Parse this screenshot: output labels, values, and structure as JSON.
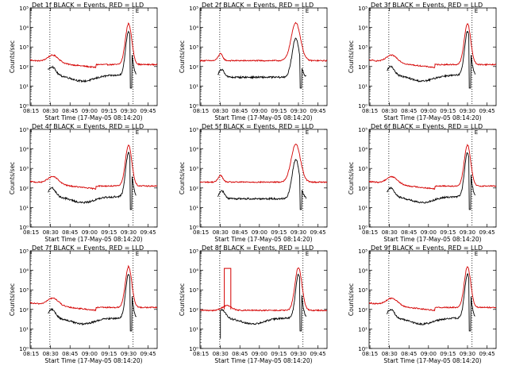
{
  "chart_data": [
    {
      "type": "line",
      "title": "Det 1f BLACK = Events, RED = LLD",
      "profile": "A",
      "series": [
        {
          "color": "#000000"
        },
        {
          "color": "#d40000"
        }
      ]
    },
    {
      "type": "line",
      "title": "Det 2f BLACK = Events, RED = LLD",
      "profile": "B",
      "series": [
        {
          "color": "#000000"
        },
        {
          "color": "#d40000"
        }
      ]
    },
    {
      "type": "line",
      "title": "Det 3f BLACK = Events, RED = LLD",
      "profile": "A",
      "series": [
        {
          "color": "#000000"
        },
        {
          "color": "#d40000"
        }
      ]
    },
    {
      "type": "line",
      "title": "Det 4f BLACK = Events, RED = LLD",
      "profile": "A",
      "series": [
        {
          "color": "#000000"
        },
        {
          "color": "#d40000"
        }
      ]
    },
    {
      "type": "line",
      "title": "Det 5f BLACK = Events, RED = LLD",
      "profile": "B",
      "series": [
        {
          "color": "#000000"
        },
        {
          "color": "#d40000"
        }
      ]
    },
    {
      "type": "line",
      "title": "Det 6f BLACK = Events, RED = LLD",
      "profile": "A",
      "series": [
        {
          "color": "#000000"
        },
        {
          "color": "#d40000"
        }
      ]
    },
    {
      "type": "line",
      "title": "Det 7f BLACK = Events, RED = LLD",
      "profile": "A",
      "series": [
        {
          "color": "#000000"
        },
        {
          "color": "#d40000"
        }
      ]
    },
    {
      "type": "line",
      "title": "Det 8f BLACK = Events, RED = LLD",
      "profile": "C",
      "series": [
        {
          "color": "#000000"
        },
        {
          "color": "#d40000"
        }
      ]
    },
    {
      "type": "line",
      "title": "Det 9f BLACK = Events, RED = LLD",
      "profile": "A",
      "series": [
        {
          "color": "#000000"
        },
        {
          "color": "#d40000"
        }
      ]
    }
  ],
  "shared": {
    "xlabel": "Start Time (17-May-05 08:14:20)",
    "ylabel": "Counts/sec",
    "x_ticks": [
      "08:15",
      "08:30",
      "08:45",
      "09:00",
      "09:15",
      "09:30",
      "09:45"
    ],
    "x_tick_minutes": [
      15,
      30,
      45,
      60,
      75,
      90,
      105
    ],
    "xlim_minutes": [
      14.33,
      112
    ],
    "y_scale": "log",
    "ylim": [
      1,
      100000
    ],
    "y_ticks": [
      1,
      10,
      100,
      1000,
      10000,
      100000
    ],
    "y_tick_labels": [
      "10⁰",
      "10¹",
      "10²",
      "10³",
      "10⁴",
      "10⁵"
    ],
    "vlines_minutes": [
      29.5,
      93.5
    ],
    "marker_label": "E"
  }
}
